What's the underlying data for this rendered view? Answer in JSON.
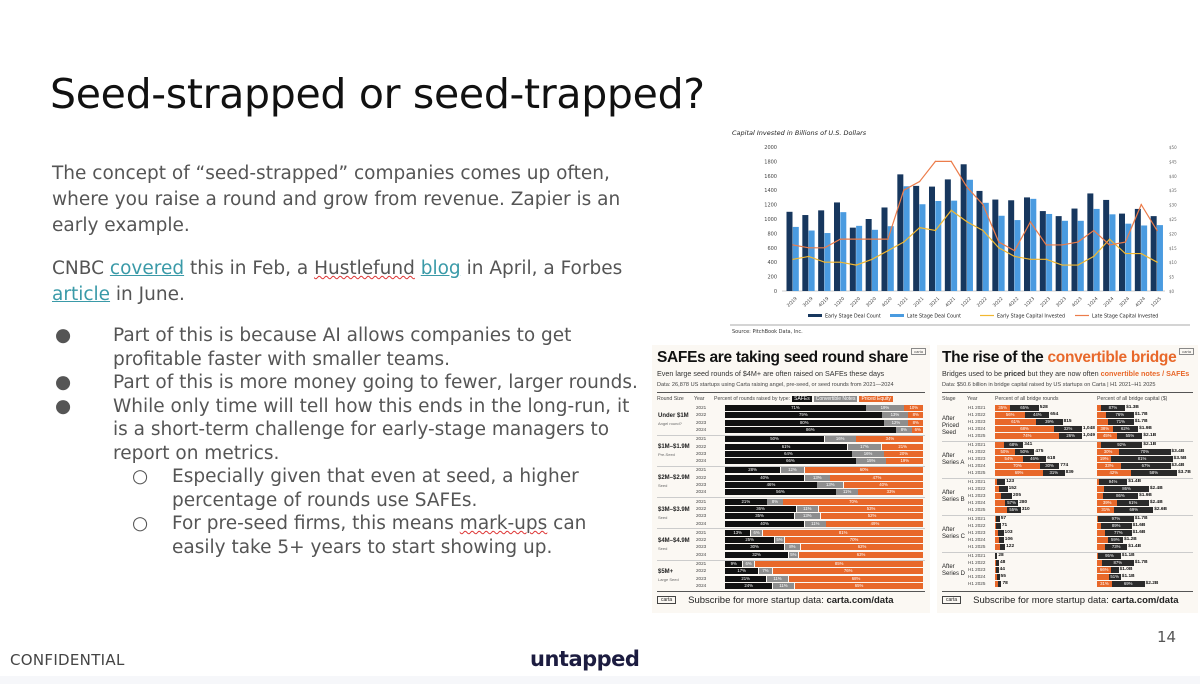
{
  "slide": {
    "title": "Seed-strapped or seed-trapped?",
    "paragraph1": "The concept of “seed-strapped” companies comes up often, where you raise a round and grow from revenue. Zapier is an early example.",
    "paragraph2": {
      "t1": "CNBC ",
      "link1": "covered",
      "t2": " this in Feb, a ",
      "t3": "Hustlefund",
      "t4": " ",
      "link2": "blog",
      "t5": " in April, a Forbes ",
      "link3": "article",
      "t6": " in June."
    },
    "bullets": [
      {
        "level": 1,
        "marker": "●",
        "text": "Part of this is because AI allows companies to get profitable faster with smaller teams."
      },
      {
        "level": 1,
        "marker": "●",
        "text": "Part of this is more money going to fewer, larger rounds."
      },
      {
        "level": 1,
        "marker": "●",
        "text": "While only time will tell how this ends in the long-run, it is a short-term challenge for early-stage managers to report on metrics."
      },
      {
        "level": 2,
        "marker": "○",
        "text": "Especially given that even at seed, a higher percentage of rounds use SAFEs."
      },
      {
        "level": 2,
        "marker": "○",
        "text_a": "For pre-seed firms, this means ",
        "text_b": "mark-ups",
        "text_c": " can easily take 5+ years to start showing up."
      }
    ],
    "page_number": "14",
    "confidential": "CONFIDENTIAL",
    "logo": "untapped",
    "link_color": "#3a9aa8"
  },
  "chart_data": [
    {
      "type": "bar+line",
      "title": "Capital Invested in Billions of U.S. Dollars",
      "source": "Source: PitchBook Data, Inc.",
      "categories": [
        "2Q19",
        "3Q19",
        "4Q19",
        "1Q20",
        "2Q20",
        "3Q20",
        "4Q20",
        "1Q21",
        "2Q21",
        "3Q21",
        "4Q21",
        "1Q22",
        "2Q22",
        "3Q22",
        "4Q22",
        "1Q23",
        "2Q23",
        "3Q23",
        "4Q23",
        "1Q24",
        "2Q24",
        "3Q24",
        "4Q24",
        "1Q25"
      ],
      "ylim_left": [
        0,
        2000
      ],
      "yticks_left": [
        0,
        200,
        400,
        600,
        800,
        1000,
        1200,
        1400,
        1600,
        1800,
        2000
      ],
      "ylim_right": [
        0,
        50
      ],
      "yticks_right": [
        "$0",
        "$5",
        "$10",
        "$15",
        "$20",
        "$25",
        "$30",
        "$35",
        "$40",
        "$45",
        "$50"
      ],
      "legend_position": "bottom",
      "series": [
        {
          "name": "Early Stage Deal Count",
          "kind": "bar",
          "axis": "left",
          "color": "#17375e",
          "values": [
            1100,
            1055,
            1120,
            1230,
            880,
            1000,
            1160,
            1620,
            1460,
            1450,
            1550,
            1760,
            1390,
            1270,
            1260,
            1300,
            1110,
            1040,
            1145,
            1355,
            1265,
            1075,
            1140,
            1040
          ]
        },
        {
          "name": "Late Stage Deal Count",
          "kind": "bar",
          "axis": "left",
          "color": "#4a9be0",
          "values": [
            890,
            840,
            805,
            1095,
            905,
            850,
            900,
            1455,
            1205,
            1250,
            1255,
            1545,
            1225,
            1045,
            985,
            1280,
            1070,
            975,
            975,
            1140,
            1065,
            935,
            910,
            915
          ]
        },
        {
          "name": "Early Stage Capital Invested",
          "kind": "line",
          "axis": "right",
          "color": "#f2b830",
          "values": [
            11,
            12,
            10,
            10,
            9,
            11,
            14,
            17,
            22,
            21,
            28,
            24,
            21,
            15,
            12,
            11,
            11,
            9,
            9,
            12,
            18,
            13,
            13,
            10
          ]
        },
        {
          "name": "Late Stage Capital Invested",
          "kind": "line",
          "axis": "right",
          "color": "#ec7c4a",
          "values": [
            16,
            15,
            15,
            18,
            18,
            18,
            18,
            35,
            38,
            45,
            45,
            36,
            30,
            17,
            14,
            24,
            16,
            16,
            17,
            21,
            16,
            17,
            30,
            21
          ]
        }
      ]
    },
    {
      "type": "stacked-bar",
      "title": "SAFEs are taking seed round share",
      "subtitle": "Even large seed rounds of $4M+ are often raised on SAFEs these days",
      "note": "Data: 26,878 US startups using Carta raising angel, pre-seed, or seed rounds from 2021—2024",
      "badge": "carta",
      "headers": {
        "group": "Round Size",
        "year": "Year",
        "bars": "Percent of rounds raised by type:"
      },
      "series": [
        {
          "name": "SAFEs",
          "color": "#111111"
        },
        {
          "name": "Convertible Notes",
          "color": "#8e8e8e"
        },
        {
          "name": "Priced Equity",
          "color": "#e8682a"
        }
      ],
      "groups": [
        {
          "label": "Under $1M",
          "sublabel": "Angel round?",
          "rows": [
            {
              "year": "2021",
              "values": [
                71,
                19,
                10
              ]
            },
            {
              "year": "2022",
              "values": [
                79,
                13,
                8
              ]
            },
            {
              "year": "2023",
              "values": [
                80,
                12,
                8
              ]
            },
            {
              "year": "2024",
              "values": [
                86,
                8,
                6
              ]
            }
          ]
        },
        {
          "label": "$1M–$1.9M",
          "sublabel": "Pre-Seed",
          "rows": [
            {
              "year": "2021",
              "values": [
                50,
                16,
                34
              ]
            },
            {
              "year": "2022",
              "values": [
                61,
                17,
                21
              ]
            },
            {
              "year": "2023",
              "values": [
                64,
                16,
                20
              ]
            },
            {
              "year": "2024",
              "values": [
                66,
                15,
                19
              ]
            }
          ]
        },
        {
          "label": "$2M–$2.9M",
          "sublabel": "Seed",
          "rows": [
            {
              "year": "2021",
              "values": [
                28,
                12,
                60
              ]
            },
            {
              "year": "2022",
              "values": [
                40,
                13,
                47
              ]
            },
            {
              "year": "2023",
              "values": [
                46,
                13,
                40
              ]
            },
            {
              "year": "2024",
              "values": [
                56,
                11,
                33
              ]
            }
          ]
        },
        {
          "label": "$3M–$3.9M",
          "sublabel": "Seed",
          "rows": [
            {
              "year": "2021",
              "values": [
                21,
                8,
                70
              ]
            },
            {
              "year": "2022",
              "values": [
                36,
                11,
                53
              ]
            },
            {
              "year": "2023",
              "values": [
                35,
                13,
                52
              ]
            },
            {
              "year": "2024",
              "values": [
                40,
                11,
                49
              ]
            }
          ]
        },
        {
          "label": "$4M–$4.9M",
          "sublabel": "Seed",
          "rows": [
            {
              "year": "2021",
              "values": [
                13,
                6,
                81
              ]
            },
            {
              "year": "2022",
              "values": [
                25,
                5,
                70
              ]
            },
            {
              "year": "2023",
              "values": [
                30,
                8,
                62
              ]
            },
            {
              "year": "2024",
              "values": [
                32,
                5,
                63
              ]
            }
          ]
        },
        {
          "label": "$5M+",
          "sublabel": "Large Seed",
          "rows": [
            {
              "year": "2021",
              "values": [
                9,
                6,
                85
              ]
            },
            {
              "year": "2022",
              "values": [
                17,
                7,
                76
              ]
            },
            {
              "year": "2023",
              "values": [
                21,
                11,
                68
              ]
            },
            {
              "year": "2024",
              "values": [
                24,
                11,
                65
              ]
            }
          ]
        }
      ],
      "footer_logo": "carta",
      "footer_text": "Subscribe for more startup data: ",
      "footer_link": "carta.com/data"
    },
    {
      "type": "stacked-bar",
      "title_a": "The rise of the ",
      "title_b": "convertible bridge",
      "subtitle": {
        "a": "Bridges used to be ",
        "b": "priced",
        "c": " but they are now often ",
        "d": "convertible notes / SAFEs"
      },
      "note": "Data: $50.6 billion in bridge capital raised by US startups on Carta | H1 2021–H1 2025",
      "badge": "carta",
      "headers": {
        "group": "Stage",
        "year": "Year",
        "rounds": "Percent of all bridge rounds",
        "capital": "Percent of all bridge capital ($)"
      },
      "colors": {
        "convertible": "#e8682a",
        "priced": "#2a2a2a"
      },
      "groups": [
        {
          "label": "After Priced Seed",
          "rows": [
            {
              "year": "H1 2021",
              "rounds_conv_pct": 35,
              "rounds": "528",
              "rounds_n": 528,
              "cap_conv_pct": 13,
              "capital": "$1.3B",
              "capital_n": 1.3
            },
            {
              "year": "H1 2022",
              "rounds_conv_pct": 56,
              "rounds": "654",
              "rounds_n": 654,
              "cap_conv_pct": 24,
              "capital": "$1.7B",
              "capital_n": 1.7
            },
            {
              "year": "H1 2023",
              "rounds_conv_pct": 61,
              "rounds": "815",
              "rounds_n": 815,
              "cap_conv_pct": 29,
              "capital": "$1.7B",
              "capital_n": 1.7
            },
            {
              "year": "H1 2024",
              "rounds_conv_pct": 68,
              "rounds": "1,048",
              "rounds_n": 1048,
              "cap_conv_pct": 38,
              "capital": "$1.9B",
              "capital_n": 1.9
            },
            {
              "year": "H1 2025",
              "rounds_conv_pct": 74,
              "rounds": "1,049",
              "rounds_n": 1049,
              "cap_conv_pct": 45,
              "capital": "$2.1B",
              "capital_n": 2.1
            }
          ]
        },
        {
          "label": "After Series A",
          "rows": [
            {
              "year": "H1 2021",
              "rounds_conv_pct": 32,
              "rounds": "341",
              "rounds_n": 341,
              "cap_conv_pct": 8,
              "capital": "$2.1B",
              "capital_n": 2.1
            },
            {
              "year": "H1 2022",
              "rounds_conv_pct": 50,
              "rounds": "475",
              "rounds_n": 475,
              "cap_conv_pct": 30,
              "capital": "$3.4B",
              "capital_n": 3.4
            },
            {
              "year": "H1 2023",
              "rounds_conv_pct": 54,
              "rounds": "618",
              "rounds_n": 618,
              "cap_conv_pct": 19,
              "capital": "$3.5B",
              "capital_n": 3.5
            },
            {
              "year": "H1 2024",
              "rounds_conv_pct": 70,
              "rounds": "774",
              "rounds_n": 774,
              "cap_conv_pct": 33,
              "capital": "$3.4B",
              "capital_n": 3.4
            },
            {
              "year": "H1 2025",
              "rounds_conv_pct": 69,
              "rounds": "839",
              "rounds_n": 839,
              "cap_conv_pct": 42,
              "capital": "$3.7B",
              "capital_n": 3.7
            }
          ]
        },
        {
          "label": "After Series B",
          "rows": [
            {
              "year": "H1 2021",
              "rounds_conv_pct": 20,
              "rounds": "123",
              "rounds_n": 123,
              "cap_conv_pct": 6,
              "capital": "$1.4B",
              "capital_n": 1.4
            },
            {
              "year": "H1 2022",
              "rounds_conv_pct": 30,
              "rounds": "152",
              "rounds_n": 152,
              "cap_conv_pct": 14,
              "capital": "$2.4B",
              "capital_n": 2.4
            },
            {
              "year": "H1 2023",
              "rounds_conv_pct": 35,
              "rounds": "205",
              "rounds_n": 205,
              "cap_conv_pct": 14,
              "capital": "$1.9B",
              "capital_n": 1.9
            },
            {
              "year": "H1 2024",
              "rounds_conv_pct": 43,
              "rounds": "280",
              "rounds_n": 280,
              "cap_conv_pct": 39,
              "capital": "$2.4B",
              "capital_n": 2.4
            },
            {
              "year": "H1 2025",
              "rounds_conv_pct": 45,
              "rounds": "310",
              "rounds_n": 310,
              "cap_conv_pct": 31,
              "capital": "$2.6B",
              "capital_n": 2.6
            }
          ]
        },
        {
          "label": "After Series C",
          "rows": [
            {
              "year": "H1 2021",
              "rounds_conv_pct": 20,
              "rounds": "57",
              "rounds_n": 57,
              "cap_conv_pct": 3,
              "capital": "$1.7B",
              "capital_n": 1.7
            },
            {
              "year": "H1 2022",
              "rounds_conv_pct": 25,
              "rounds": "71",
              "rounds_n": 71,
              "cap_conv_pct": 11,
              "capital": "$1.6B",
              "capital_n": 1.6
            },
            {
              "year": "H1 2023",
              "rounds_conv_pct": 35,
              "rounds": "103",
              "rounds_n": 103,
              "cap_conv_pct": 23,
              "capital": "$1.6B",
              "capital_n": 1.6
            },
            {
              "year": "H1 2024",
              "rounds_conv_pct": 40,
              "rounds": "106",
              "rounds_n": 106,
              "cap_conv_pct": 41,
              "capital": "$1.2B",
              "capital_n": 1.2
            },
            {
              "year": "H1 2025",
              "rounds_conv_pct": 45,
              "rounds": "122",
              "rounds_n": 122,
              "cap_conv_pct": 27,
              "capital": "$1.4B",
              "capital_n": 1.4
            }
          ]
        },
        {
          "label": "After Series D",
          "rows": [
            {
              "year": "H1 2021",
              "rounds_conv_pct": 15,
              "rounds": "28",
              "rounds_n": 28,
              "cap_conv_pct": 5,
              "capital": "$1.1B",
              "capital_n": 1.1
            },
            {
              "year": "H1 2022",
              "rounds_conv_pct": 25,
              "rounds": "48",
              "rounds_n": 48,
              "cap_conv_pct": 13,
              "capital": "$1.7B",
              "capital_n": 1.7
            },
            {
              "year": "H1 2023",
              "rounds_conv_pct": 35,
              "rounds": "44",
              "rounds_n": 44,
              "cap_conv_pct": 66,
              "capital": "$1.0B",
              "capital_n": 1.0
            },
            {
              "year": "H1 2024",
              "rounds_conv_pct": 40,
              "rounds": "55",
              "rounds_n": 55,
              "cap_conv_pct": 49,
              "capital": "$1.1B",
              "capital_n": 1.1
            },
            {
              "year": "H1 2025",
              "rounds_conv_pct": 45,
              "rounds": "78",
              "rounds_n": 78,
              "cap_conv_pct": 31,
              "capital": "$2.2B",
              "capital_n": 2.2
            }
          ]
        }
      ],
      "footer_logo": "carta",
      "footer_text": "Subscribe for more startup data: ",
      "footer_link": "carta.com/data"
    }
  ]
}
